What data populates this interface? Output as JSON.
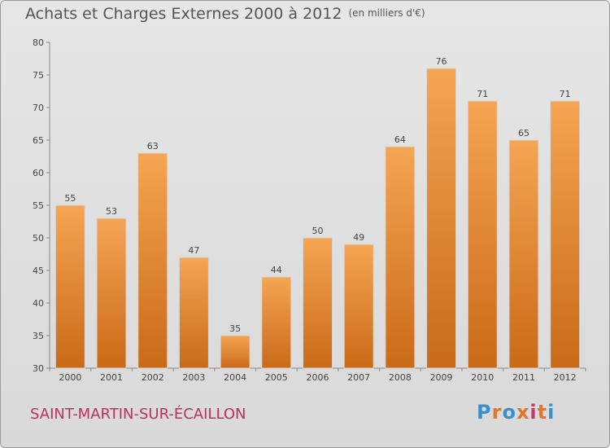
{
  "header": {
    "title": "Achats et Charges Externes 2000 à 2012",
    "unit": "(en milliers d'€)"
  },
  "footer": {
    "commune": "SAINT-MARTIN-SUR-ÉCAILLON",
    "logo_text": "Proxiti",
    "logo_letters": [
      "P",
      "r",
      "o",
      "x",
      "i",
      "t",
      "i"
    ],
    "logo_colors": [
      "#3a8fd0",
      "#e8732a",
      "#3a8fd0",
      "#e8732a",
      "#cc3366",
      "#e8732a",
      "#3a8fd0"
    ]
  },
  "chart_data": {
    "type": "bar",
    "title": "Achats et Charges Externes 2000 à 2012",
    "subtitle": "(en milliers d'€)",
    "xlabel": "",
    "ylabel": "",
    "categories": [
      "2000",
      "2001",
      "2002",
      "2003",
      "2004",
      "2005",
      "2006",
      "2007",
      "2008",
      "2009",
      "2010",
      "2011",
      "2012"
    ],
    "values": [
      55,
      53,
      63,
      47,
      35,
      44,
      50,
      49,
      64,
      76,
      71,
      65,
      71
    ],
    "ylim": [
      30,
      80
    ],
    "yticks": [
      30,
      35,
      40,
      45,
      50,
      55,
      60,
      65,
      70,
      75,
      80
    ],
    "grid": false,
    "bar_color": "#e8832a",
    "bar_color_light": "#f5a553",
    "bar_color_dark": "#c96a18"
  }
}
